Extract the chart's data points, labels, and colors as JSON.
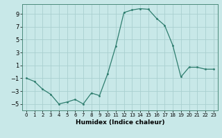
{
  "x": [
    0,
    1,
    2,
    3,
    4,
    5,
    6,
    7,
    8,
    9,
    10,
    11,
    12,
    13,
    14,
    15,
    16,
    17,
    18,
    19,
    20,
    21,
    22,
    23
  ],
  "y": [
    -1,
    -1.5,
    -2.7,
    -3.5,
    -5,
    -4.7,
    -4.3,
    -5,
    -3.3,
    -3.7,
    -0.3,
    4,
    9.2,
    9.6,
    9.8,
    9.7,
    8.3,
    7.2,
    4.1,
    -0.8,
    0.7,
    0.7,
    0.4,
    0.4
  ],
  "line_color": "#2e7d6e",
  "marker": "o",
  "markersize": 1.5,
  "linewidth": 0.9,
  "bg_color": "#c8e8e8",
  "grid_color": "#aad0d0",
  "xlabel": "Humidex (Indice chaleur)",
  "ylim": [
    -6,
    10.5
  ],
  "xlim": [
    -0.5,
    23.5
  ],
  "yticks": [
    -5,
    -3,
    -1,
    1,
    3,
    5,
    7,
    9
  ],
  "xticks": [
    0,
    1,
    2,
    3,
    4,
    5,
    6,
    7,
    8,
    9,
    10,
    11,
    12,
    13,
    14,
    15,
    16,
    17,
    18,
    19,
    20,
    21,
    22,
    23
  ],
  "xlabel_fontsize": 6.5,
  "ytick_fontsize": 6,
  "xtick_fontsize": 5
}
